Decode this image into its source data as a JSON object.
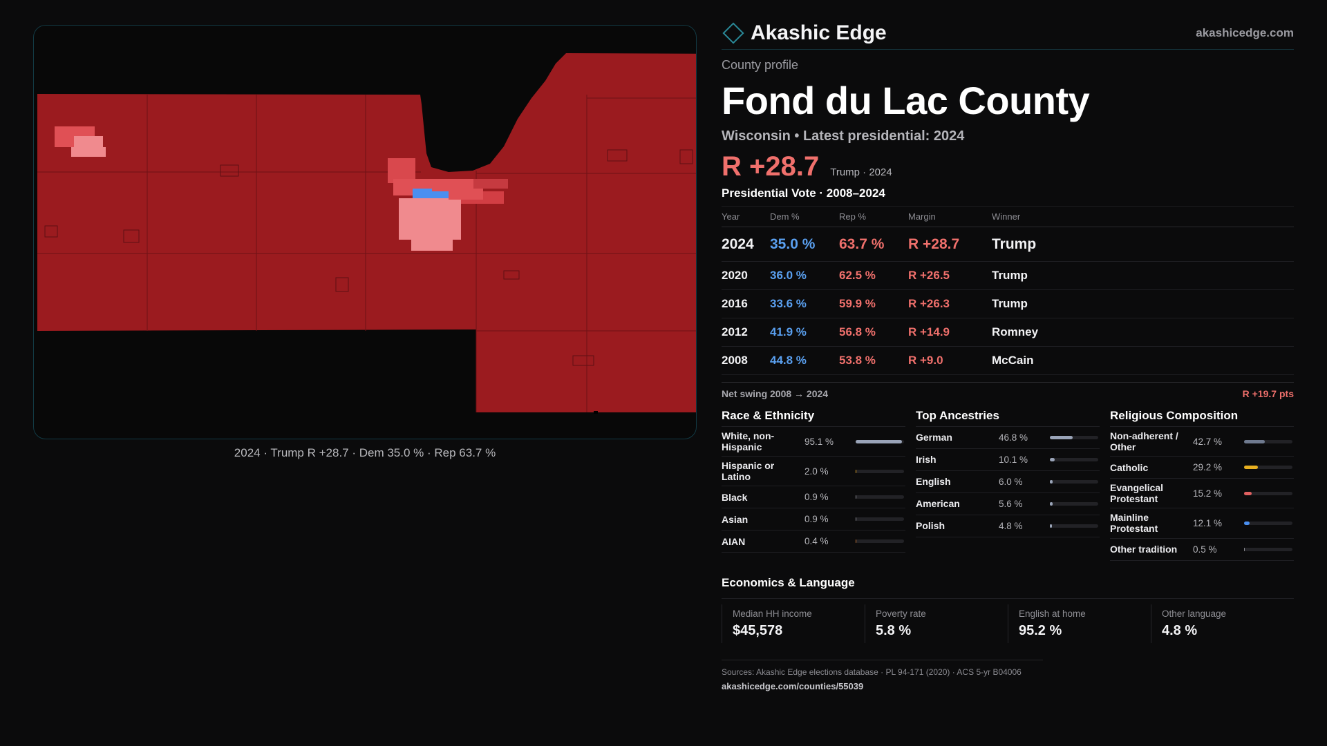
{
  "brand": {
    "name": "Akashic Edge",
    "url": "akashicedge.com"
  },
  "kicker": "County profile",
  "county": "Fond du Lac County",
  "subtitle": "Wisconsin • Latest presidential: 2024",
  "headline": {
    "margin": "R +28.7",
    "note": "Trump · 2024"
  },
  "colors": {
    "rep": "#f0706c",
    "dem": "#5aa0f0",
    "county_fill": "#9b1b1f",
    "muni_mid": "#e05055",
    "muni_light": "#f08a8e",
    "dem_area": "#4a8ff0"
  },
  "map": {
    "caption": "2024 · Trump R +28.7 · Dem 35.0 % · Rep 63.7 %",
    "winner_party": "Republican"
  },
  "vote_section": {
    "title": "Presidential Vote · 2008–2024",
    "headers": {
      "year": "Year",
      "dem": "Dem %",
      "rep": "Rep %",
      "margin": "Margin",
      "winner": "Winner"
    },
    "rows": [
      {
        "year": "2024",
        "dem": "35.0 %",
        "rep": "63.7 %",
        "margin": "R +28.7",
        "winner": "Trump"
      },
      {
        "year": "2020",
        "dem": "36.0 %",
        "rep": "62.5 %",
        "margin": "R +26.5",
        "winner": "Trump"
      },
      {
        "year": "2016",
        "dem": "33.6 %",
        "rep": "59.9 %",
        "margin": "R +26.3",
        "winner": "Trump"
      },
      {
        "year": "2012",
        "dem": "41.9 %",
        "rep": "56.8 %",
        "margin": "R +14.9",
        "winner": "Romney"
      },
      {
        "year": "2008",
        "dem": "44.8 %",
        "rep": "53.8 %",
        "margin": "R +9.0",
        "winner": "McCain"
      }
    ],
    "swing_label": "Net swing 2008 → 2024",
    "swing_value": "R +19.7 pts"
  },
  "demographics": [
    {
      "title": "Race & Ethnicity",
      "items": [
        {
          "label": "White, non-Hispanic",
          "pct": "95.1 %",
          "value": 95.1,
          "color": "#9aa4b8"
        },
        {
          "label": "Hispanic or Latino",
          "pct": "2.0 %",
          "value": 2.0,
          "color": "#e0a020"
        },
        {
          "label": "Black",
          "pct": "0.9 %",
          "value": 0.9,
          "color": "#8a8a90"
        },
        {
          "label": "Asian",
          "pct": "0.9 %",
          "value": 0.9,
          "color": "#8a8a90"
        },
        {
          "label": "AIAN",
          "pct": "0.4 %",
          "value": 0.4,
          "color": "#c07030"
        }
      ]
    },
    {
      "title": "Top Ancestries",
      "items": [
        {
          "label": "German",
          "pct": "46.8 %",
          "value": 46.8,
          "color": "#9aa4b8"
        },
        {
          "label": "Irish",
          "pct": "10.1 %",
          "value": 10.1,
          "color": "#9aa4b8"
        },
        {
          "label": "English",
          "pct": "6.0 %",
          "value": 6.0,
          "color": "#9aa4b8"
        },
        {
          "label": "American",
          "pct": "5.6 %",
          "value": 5.6,
          "color": "#9aa4b8"
        },
        {
          "label": "Polish",
          "pct": "4.8 %",
          "value": 4.8,
          "color": "#9aa4b8"
        }
      ]
    },
    {
      "title": "Religious Composition",
      "items": [
        {
          "label": "Non-adherent / Other",
          "pct": "42.7 %",
          "value": 42.7,
          "color": "#6f7a8f"
        },
        {
          "label": "Catholic",
          "pct": "29.2 %",
          "value": 29.2,
          "color": "#e8b020"
        },
        {
          "label": "Evangelical Protestant",
          "pct": "15.2 %",
          "value": 15.2,
          "color": "#e06060"
        },
        {
          "label": "Mainline Protestant",
          "pct": "12.1 %",
          "value": 12.1,
          "color": "#4a8ff0"
        },
        {
          "label": "Other tradition",
          "pct": "0.5 %",
          "value": 0.5,
          "color": "#8a8a90"
        }
      ]
    }
  ],
  "economics": {
    "title": "Economics & Language",
    "items": [
      {
        "label": "Median HH income",
        "value": "$45,578"
      },
      {
        "label": "Poverty rate",
        "value": "5.8 %"
      },
      {
        "label": "English at home",
        "value": "95.2 %"
      },
      {
        "label": "Other language",
        "value": "4.8 %"
      }
    ]
  },
  "sources": {
    "line": "Sources: Akashic Edge elections database · PL 94-171 (2020) · ACS 5-yr B04006",
    "url": "akashicedge.com/counties/55039"
  }
}
